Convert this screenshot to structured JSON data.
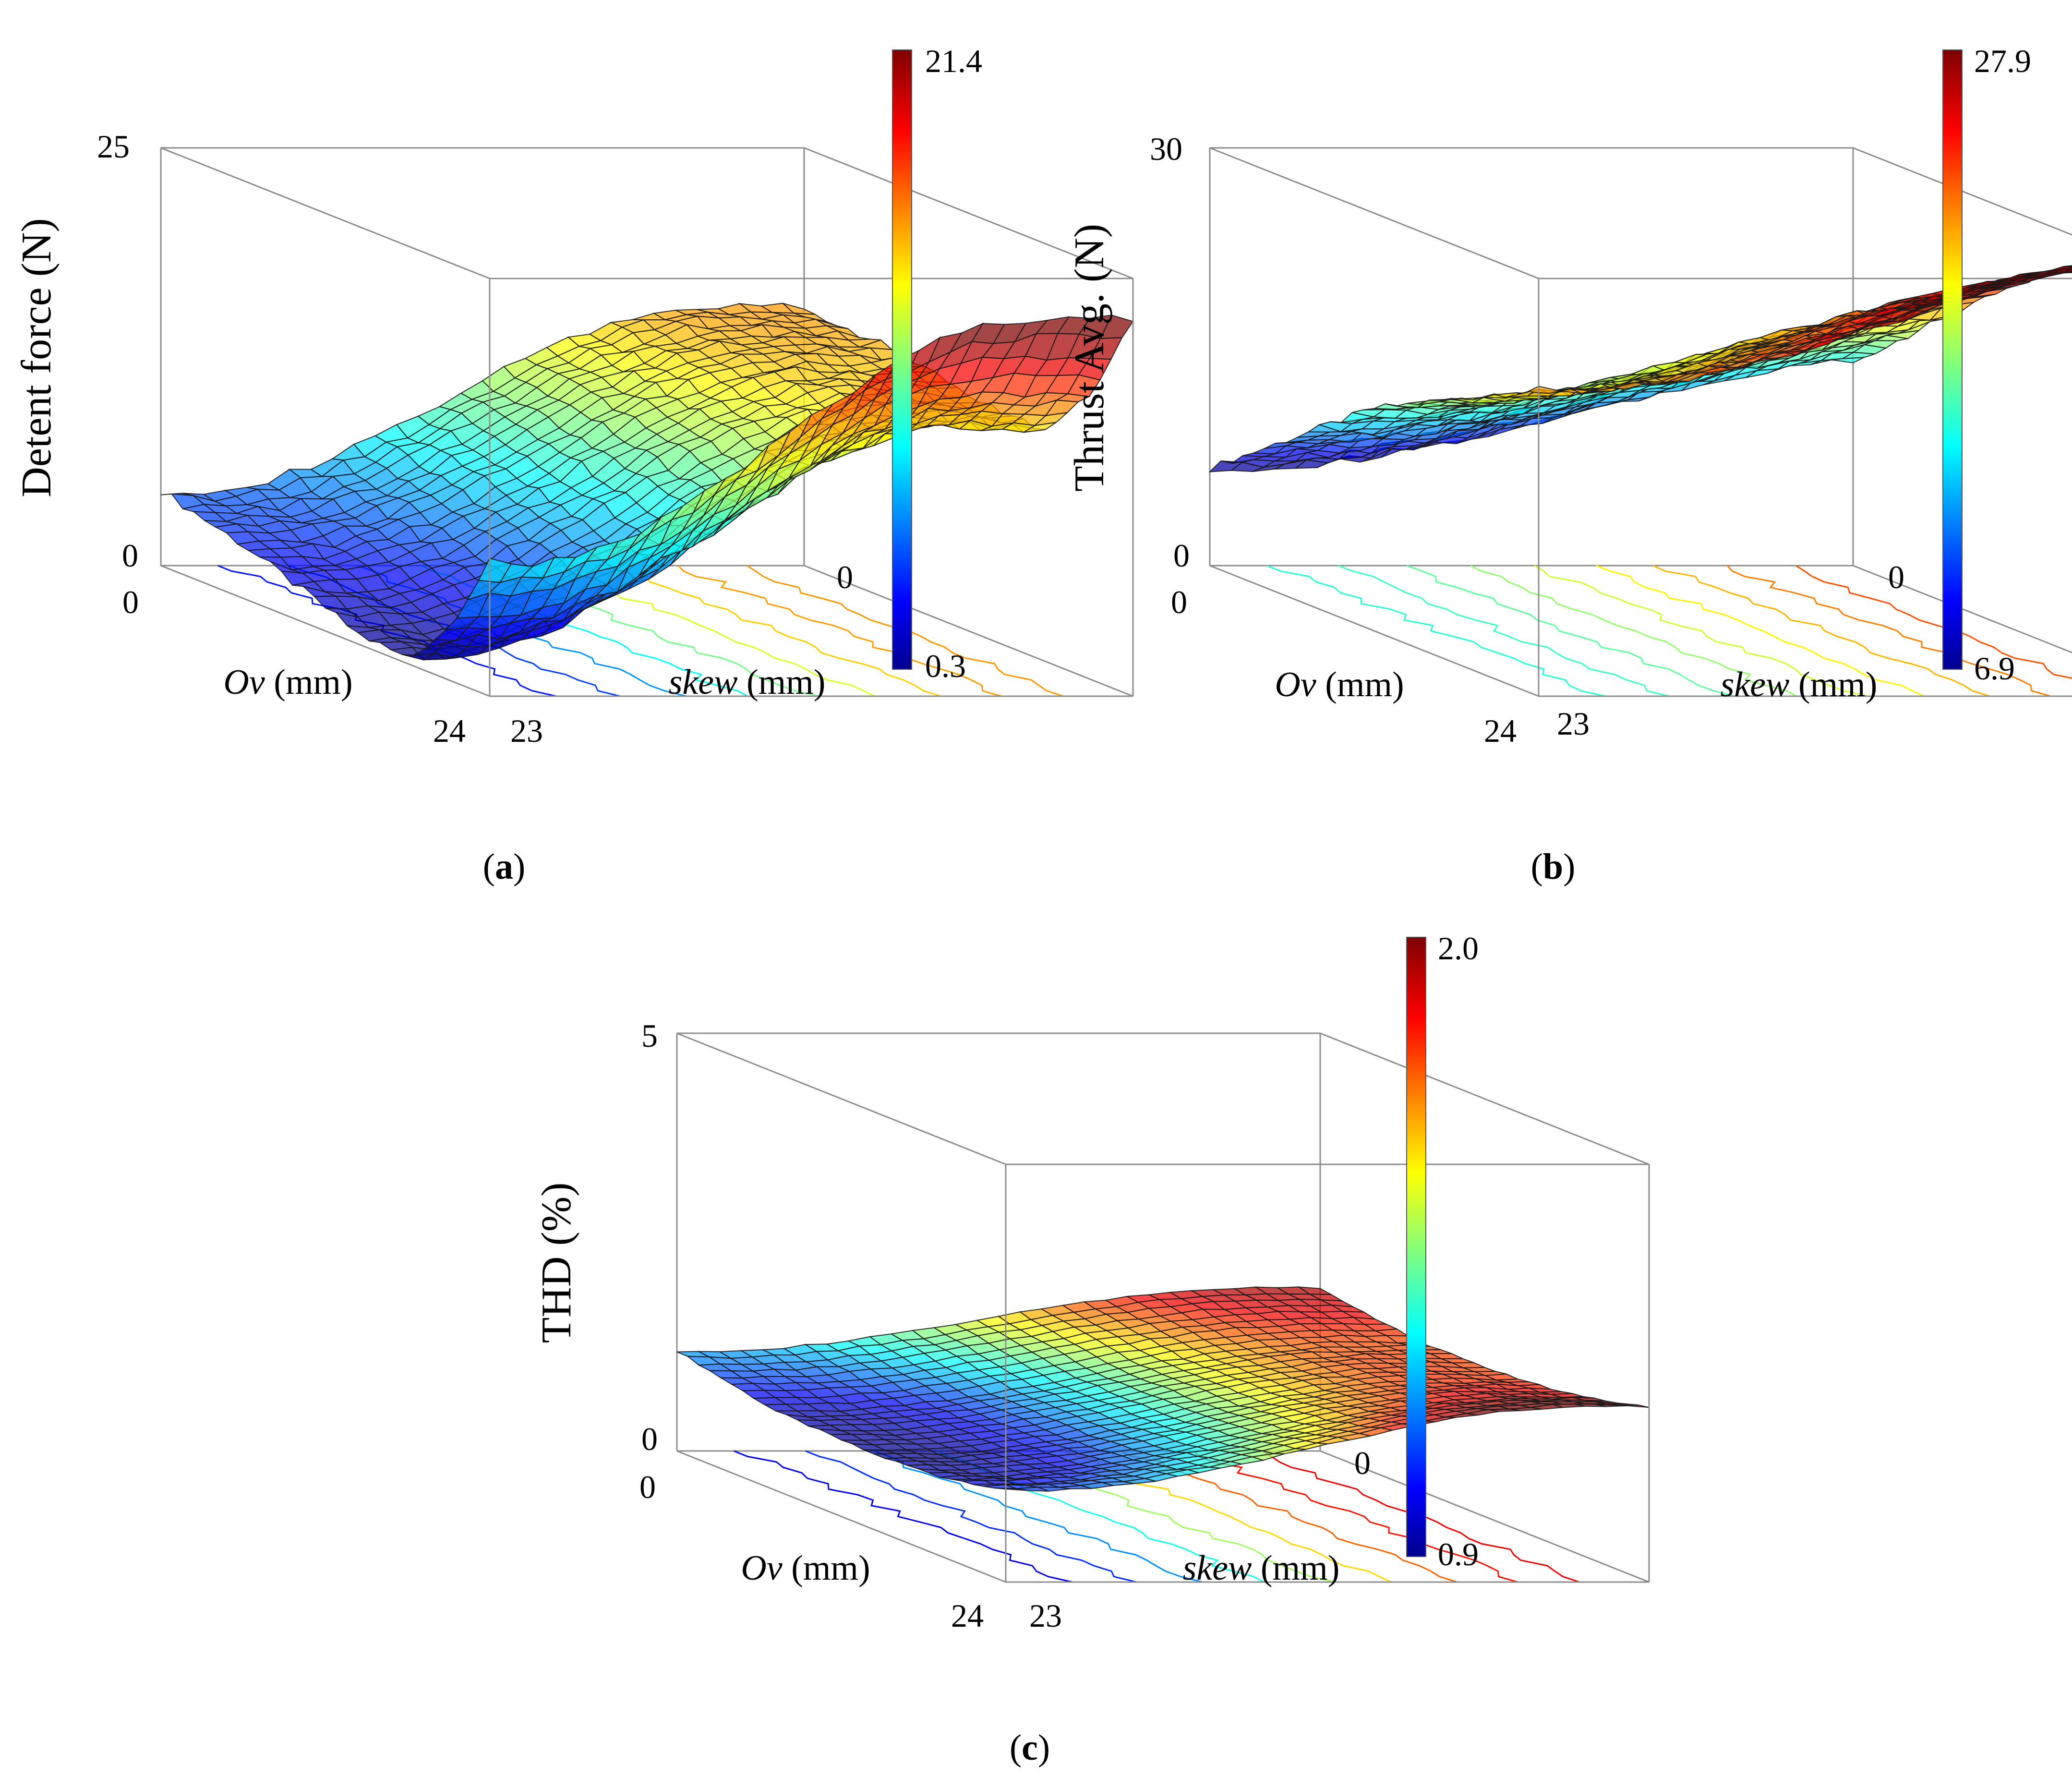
{
  "figure": {
    "captions": [
      "a",
      "b",
      "c"
    ]
  },
  "chart_data": [
    {
      "type": "surface3d",
      "panel": "a",
      "caption": "a",
      "zlabel": "Detent force (N)",
      "xlabel_italic": "Ov",
      "xlabel_unit": " (mm)",
      "ylabel_italic": "skew",
      "ylabel_unit": " (mm)",
      "x_range": [
        0,
        24
      ],
      "y_range": [
        0,
        23
      ],
      "z_range": [
        0,
        25
      ],
      "x_ticks": [
        "0",
        "24"
      ],
      "y_ticks": [
        "0",
        "23"
      ],
      "z_ticks": [
        "0",
        "25"
      ],
      "colorbar": {
        "min": 0.3,
        "max": 21.4,
        "min_label": "0.3",
        "max_label": "21.4",
        "colormap": "jet"
      },
      "profile": {
        "axis": "Ov",
        "knots_fraction": [
          0,
          0.25,
          0.5,
          0.6,
          0.75,
          0.87,
          1.0
        ],
        "values": [
          4.5,
          3.2,
          1.4,
          0.6,
          0.3,
          3.0,
          8.0
        ],
        "skew_slope": 14.6,
        "skew_smooth": 0.35
      }
    },
    {
      "type": "surface3d",
      "panel": "b",
      "caption": "b",
      "zlabel": "Thrust Avg. (N)",
      "xlabel_italic": "Ov",
      "xlabel_unit": " (mm)",
      "ylabel_italic": "skew",
      "ylabel_unit": " (mm)",
      "x_range": [
        0,
        24
      ],
      "y_range": [
        0,
        23
      ],
      "z_range": [
        0,
        30
      ],
      "x_ticks": [
        "0",
        "24"
      ],
      "y_ticks": [
        "0",
        "23"
      ],
      "z_ticks": [
        "0",
        "30"
      ],
      "colorbar": {
        "min": 6.9,
        "max": 27.9,
        "min_label": "6.9",
        "max_label": "27.9",
        "colormap": "jet"
      },
      "profile": {
        "axis": "Ov",
        "knots_fraction": [
          0,
          0.25,
          0.5,
          0.75,
          1.0
        ],
        "values": [
          7.0,
          11.5,
          16.0,
          19.0,
          22.0
        ],
        "skew_slope": 10.5,
        "skew_smooth": 0.6
      }
    },
    {
      "type": "surface3d",
      "panel": "c",
      "caption": "c",
      "zlabel": "THD (%)",
      "xlabel_italic": "Ov",
      "xlabel_unit": " (mm)",
      "ylabel_italic": "skew",
      "ylabel_unit": " (mm)",
      "x_range": [
        0,
        24
      ],
      "y_range": [
        0,
        23
      ],
      "z_range": [
        0,
        5
      ],
      "x_ticks": [
        "0",
        "24"
      ],
      "y_ticks": [
        "0",
        "23"
      ],
      "z_ticks": [
        "0",
        "5"
      ],
      "colorbar": {
        "min": 0.9,
        "max": 2.0,
        "min_label": "0.9",
        "max_label": "2.0",
        "colormap": "jet"
      },
      "profile": {
        "axis": "Ov",
        "knots_fraction": [
          0,
          0.3,
          0.6,
          0.8,
          1.0
        ],
        "values": [
          1.2,
          0.95,
          0.9,
          0.95,
          1.1
        ],
        "skew_slope": 1.0,
        "skew_smooth": 0.4
      }
    }
  ]
}
